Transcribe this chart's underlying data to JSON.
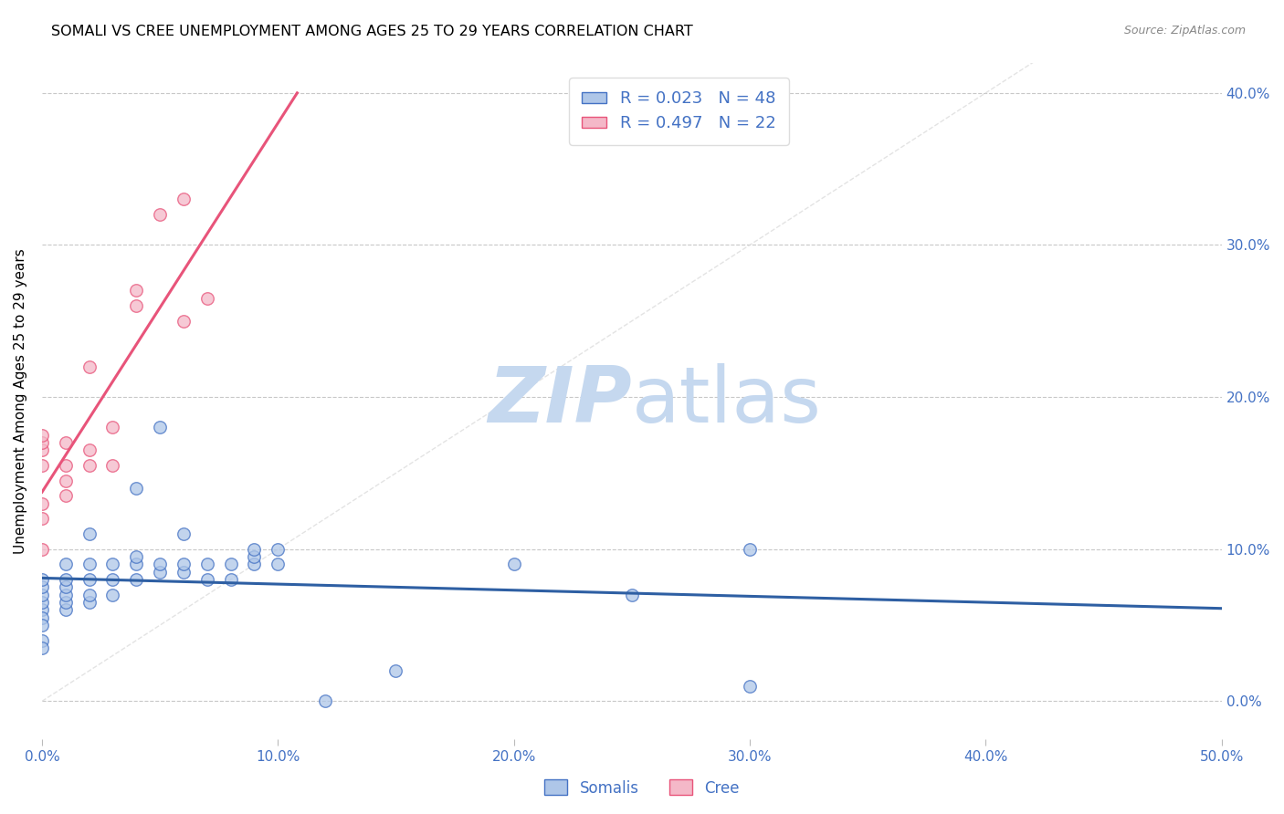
{
  "title": "SOMALI VS CREE UNEMPLOYMENT AMONG AGES 25 TO 29 YEARS CORRELATION CHART",
  "source": "Source: ZipAtlas.com",
  "ylabel": "Unemployment Among Ages 25 to 29 years",
  "xlim": [
    0.0,
    0.5
  ],
  "ylim": [
    -0.025,
    0.42
  ],
  "xticks": [
    0.0,
    0.1,
    0.2,
    0.3,
    0.4,
    0.5
  ],
  "yticks": [
    0.0,
    0.1,
    0.2,
    0.3,
    0.4
  ],
  "xticklabels": [
    "0.0%",
    "10.0%",
    "20.0%",
    "30.0%",
    "40.0%",
    "50.0%"
  ],
  "yticklabels": [
    "0.0%",
    "10.0%",
    "20.0%",
    "30.0%",
    "40.0%"
  ],
  "tick_color": "#4472c4",
  "background_color": "#ffffff",
  "grid_color": "#c8c8c8",
  "somali_color": "#aec6e8",
  "somali_edge_color": "#4472c4",
  "cree_color": "#f4b8c8",
  "cree_edge_color": "#e8547a",
  "somali_line_color": "#2e5fa3",
  "cree_line_color": "#e8547a",
  "diagonal_color": "#d8d8d8",
  "R_somali": 0.023,
  "N_somali": 48,
  "R_cree": 0.497,
  "N_cree": 22,
  "legend_label_somali": "Somalis",
  "legend_label_cree": "Cree",
  "somali_x": [
    0.0,
    0.0,
    0.0,
    0.0,
    0.0,
    0.0,
    0.0,
    0.0,
    0.0,
    0.01,
    0.01,
    0.01,
    0.01,
    0.01,
    0.01,
    0.02,
    0.02,
    0.02,
    0.02,
    0.02,
    0.03,
    0.03,
    0.03,
    0.04,
    0.04,
    0.04,
    0.04,
    0.05,
    0.05,
    0.05,
    0.06,
    0.06,
    0.06,
    0.07,
    0.07,
    0.08,
    0.08,
    0.09,
    0.09,
    0.09,
    0.1,
    0.1,
    0.12,
    0.15,
    0.2,
    0.25,
    0.3,
    0.3
  ],
  "somali_y": [
    0.06,
    0.065,
    0.07,
    0.075,
    0.08,
    0.055,
    0.05,
    0.04,
    0.035,
    0.06,
    0.065,
    0.07,
    0.075,
    0.08,
    0.09,
    0.065,
    0.07,
    0.08,
    0.09,
    0.11,
    0.07,
    0.08,
    0.09,
    0.08,
    0.09,
    0.095,
    0.14,
    0.085,
    0.09,
    0.18,
    0.085,
    0.09,
    0.11,
    0.08,
    0.09,
    0.08,
    0.09,
    0.09,
    0.095,
    0.1,
    0.09,
    0.1,
    0.0,
    0.02,
    0.09,
    0.07,
    0.1,
    0.01
  ],
  "cree_x": [
    0.0,
    0.0,
    0.0,
    0.0,
    0.0,
    0.0,
    0.0,
    0.01,
    0.01,
    0.01,
    0.01,
    0.02,
    0.02,
    0.02,
    0.03,
    0.03,
    0.04,
    0.04,
    0.05,
    0.06,
    0.06,
    0.07
  ],
  "cree_y": [
    0.1,
    0.12,
    0.13,
    0.155,
    0.165,
    0.17,
    0.175,
    0.135,
    0.145,
    0.155,
    0.17,
    0.155,
    0.165,
    0.22,
    0.155,
    0.18,
    0.26,
    0.27,
    0.32,
    0.25,
    0.33,
    0.265
  ],
  "marker_size": 95,
  "watermark_zip": "ZIP",
  "watermark_atlas": "atlas",
  "watermark_color_zip": "#c5d8ef",
  "watermark_color_atlas": "#c5d8ef"
}
